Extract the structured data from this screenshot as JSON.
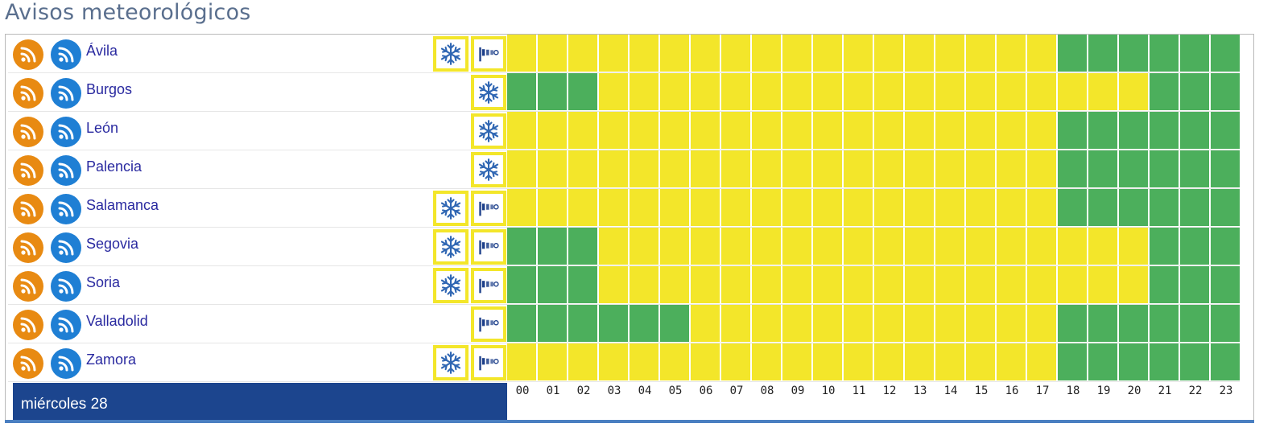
{
  "header": {
    "title": "Avisos meteorológicos"
  },
  "colors": {
    "yellow": "#f3e62a",
    "green": "#4caf5c",
    "rss_orange": "#e88a12",
    "rss_blue": "#1f7fd4",
    "footer_bg": "#1c458e",
    "name_color": "#2a2aa0"
  },
  "footer": {
    "day_label": "miércoles 28"
  },
  "hours": [
    "00",
    "01",
    "02",
    "03",
    "04",
    "05",
    "06",
    "07",
    "08",
    "09",
    "10",
    "11",
    "12",
    "13",
    "14",
    "15",
    "16",
    "17",
    "18",
    "19",
    "20",
    "21",
    "22",
    "23"
  ],
  "icons": {
    "rss": "rss-feed-icon",
    "snow": "snowflake-icon",
    "wind": "windsock-icon"
  },
  "provinces": [
    {
      "name": "Ávila",
      "icons": [
        "snow",
        "wind"
      ],
      "levels": "YYYYYYYYYYYYYYYYYYGGGGGG"
    },
    {
      "name": "Burgos",
      "icons": [
        "snow"
      ],
      "levels": "GGGYYYYYYYYYYYYYYYYYYGGG"
    },
    {
      "name": "León",
      "icons": [
        "snow"
      ],
      "levels": "YYYYYYYYYYYYYYYYYYGGGGGG"
    },
    {
      "name": "Palencia",
      "icons": [
        "snow"
      ],
      "levels": "YYYYYYYYYYYYYYYYYYGGGGGG"
    },
    {
      "name": "Salamanca",
      "icons": [
        "snow",
        "wind"
      ],
      "levels": "YYYYYYYYYYYYYYYYYYGGGGGG"
    },
    {
      "name": "Segovia",
      "icons": [
        "snow",
        "wind"
      ],
      "levels": "GGGYYYYYYYYYYYYYYYYYYGGG"
    },
    {
      "name": "Soria",
      "icons": [
        "snow",
        "wind"
      ],
      "levels": "GGGYYYYYYYYYYYYYYYYYYGGG"
    },
    {
      "name": "Valladolid",
      "icons": [
        "wind"
      ],
      "levels": "GGGGGGYYYYYYYYYYYYGGGGGG"
    },
    {
      "name": "Zamora",
      "icons": [
        "snow",
        "wind"
      ],
      "levels": "YYYYYYYYYYYYYYYYYYGGGGGG"
    }
  ]
}
